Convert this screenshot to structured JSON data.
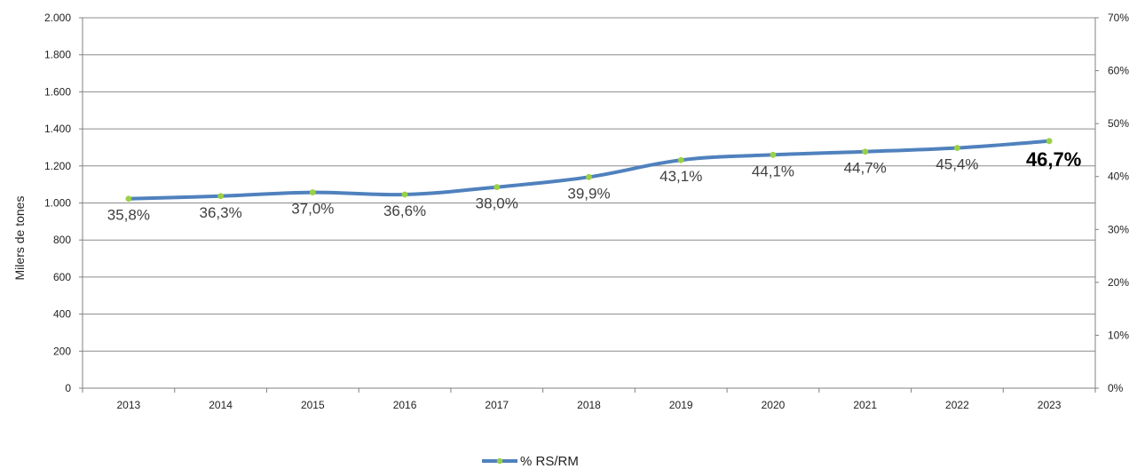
{
  "chart_data": {
    "type": "line",
    "title": "",
    "xlabel": "",
    "ylabel": "Milers de tones",
    "categories": [
      "2013",
      "2014",
      "2015",
      "2016",
      "2017",
      "2018",
      "2019",
      "2020",
      "2021",
      "2022",
      "2023"
    ],
    "series": [
      {
        "name": "% RS/RM",
        "axis": "right",
        "values": [
          35.8,
          36.3,
          37.0,
          36.6,
          38.0,
          39.9,
          43.1,
          44.1,
          44.7,
          45.4,
          46.7
        ],
        "labels": [
          "35,8%",
          "36,3%",
          "37,0%",
          "36,6%",
          "38,0%",
          "39,9%",
          "43,1%",
          "44,1%",
          "44,7%",
          "45,4%",
          "46,7%"
        ],
        "highlight_index": 10
      }
    ],
    "y_left": {
      "range": [
        0,
        2000
      ],
      "ticks": [
        0,
        200,
        400,
        600,
        800,
        1000,
        1200,
        1400,
        1600,
        1800,
        2000
      ],
      "tick_labels": [
        "0",
        "200",
        "400",
        "600",
        "800",
        "1.000",
        "1.200",
        "1.400",
        "1.600",
        "1.800",
        "2.000"
      ]
    },
    "y_right": {
      "range": [
        0,
        70
      ],
      "ticks": [
        0,
        10,
        20,
        30,
        40,
        50,
        60,
        70
      ],
      "tick_labels": [
        "0%",
        "10%",
        "20%",
        "30%",
        "40%",
        "50%",
        "60%",
        "70%"
      ]
    },
    "grid": true,
    "legend": "bottom-center",
    "colors": {
      "line": "#4F81BD",
      "marker": "#9BD046",
      "grid": "#8C8C8C",
      "axis": "#808080"
    }
  }
}
